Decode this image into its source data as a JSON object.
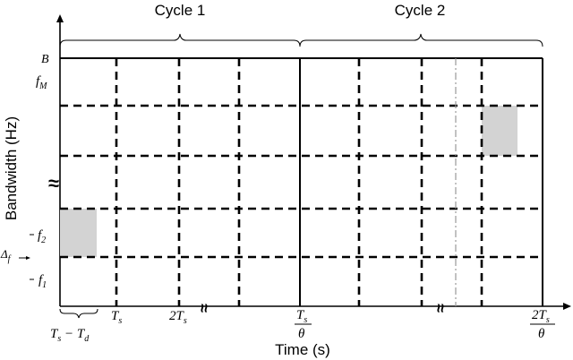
{
  "diagram": {
    "cycle_labels": [
      "Cycle 1",
      "Cycle 2"
    ],
    "y_axis_label": "Bandwidth (Hz)",
    "x_axis_label": "Time (s)",
    "y_markers": {
      "b": "B",
      "f_m": "f",
      "f_m_sub": "M",
      "f_2": "f",
      "f_2_sub": "2",
      "delta_f": "Δ",
      "delta_f_sub": "f",
      "f_1": "f",
      "f_1_sub": "1"
    },
    "x_markers": {
      "ts_minus_td": "T",
      "ts_minus_td_sub1": "s",
      "ts_minus_td_op": " − T",
      "ts_minus_td_sub2": "d",
      "ts": "T",
      "ts_sub": "s",
      "two_ts": "2T",
      "two_ts_sub": "s",
      "ts_over_theta_num": "T",
      "ts_over_theta_num_sub": "s",
      "ts_over_theta_den": "θ",
      "two_ts_over_theta_num": "2T",
      "two_ts_over_theta_num_sub": "s",
      "two_ts_over_theta_den": "θ"
    },
    "break_symbol": "≈",
    "colors": {
      "grid": "#000000",
      "shade": "#d3d3d3",
      "dash_dot": "#9a9a9a"
    }
  }
}
